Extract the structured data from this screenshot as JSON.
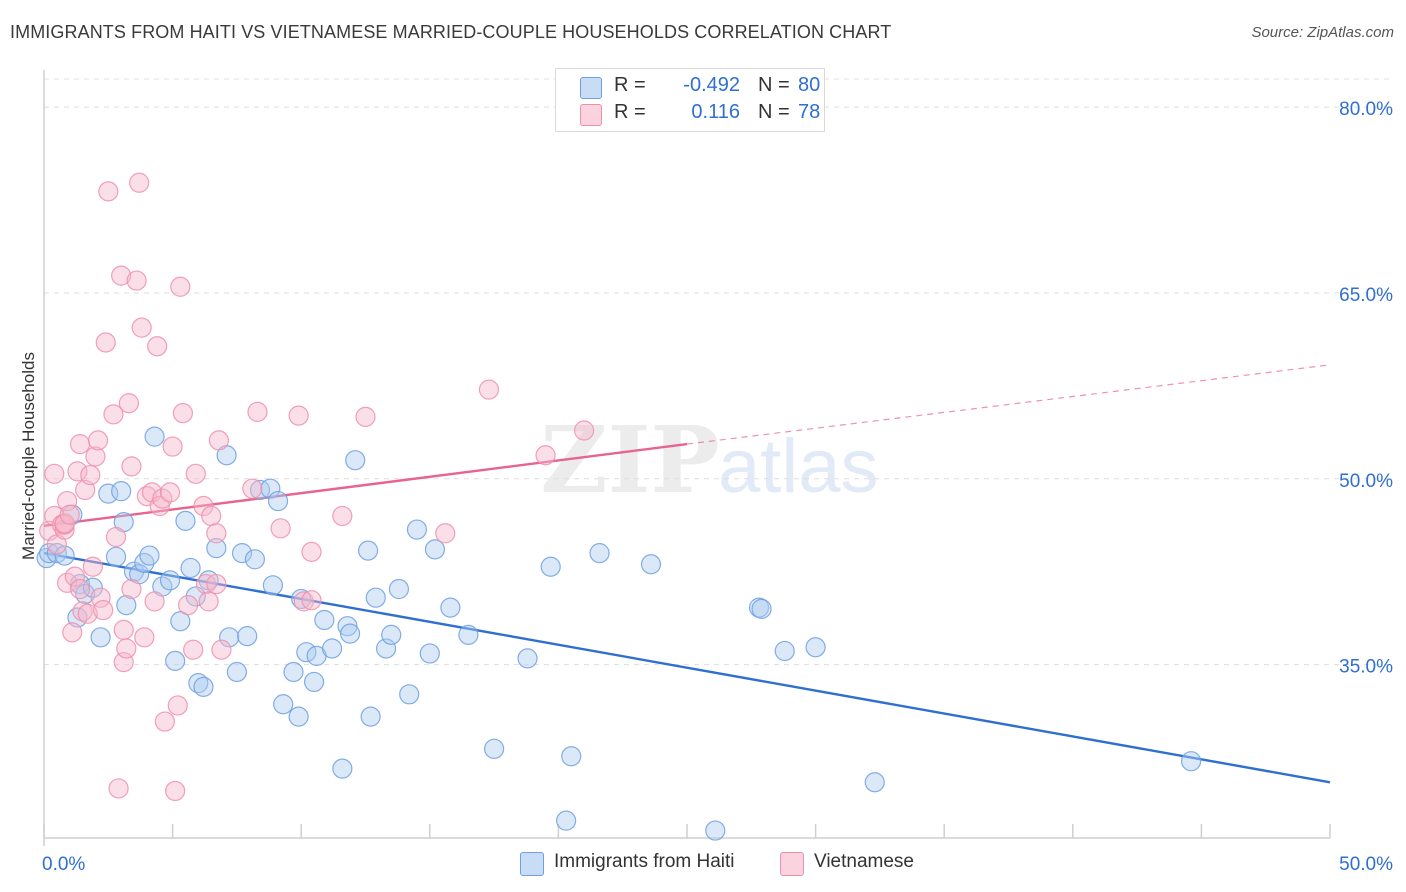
{
  "header": {
    "title": "IMMIGRANTS FROM HAITI VS VIETNAMESE MARRIED-COUPLE HOUSEHOLDS CORRELATION CHART",
    "source": "Source: ZipAtlas.com"
  },
  "watermark": {
    "zip": "ZIP",
    "atlas": "atlas"
  },
  "stats": [
    {
      "r_label": "R =",
      "r_value": "-0.492",
      "n_label": "N =",
      "n_value": "80",
      "color": "#aecbf0"
    },
    {
      "r_label": "R =",
      "r_value": "0.116",
      "n_label": "N =",
      "n_value": "78",
      "color": "#f7b9cc"
    }
  ],
  "legend": [
    {
      "label": "Immigrants from Haiti",
      "color": "#aecbf0"
    },
    {
      "label": "Vietnamese",
      "color": "#f7b9cc"
    }
  ],
  "chart_data": {
    "type": "scatter",
    "title": "IMMIGRANTS FROM HAITI VS VIETNAMESE MARRIED-COUPLE HOUSEHOLDS CORRELATION CHART",
    "xlabel": "",
    "ylabel": "Married-couple Households",
    "xlim": [
      0,
      50
    ],
    "ylim": [
      21,
      83
    ],
    "x_tick_labels": [
      "0.0%",
      "50.0%"
    ],
    "y_ticks": [
      35,
      50,
      65,
      80
    ],
    "y_tick_labels": [
      "35.0%",
      "50.0%",
      "65.0%",
      "80.0%"
    ],
    "grid": true,
    "series": [
      {
        "name": "Immigrants from Haiti",
        "color": "#6fa0e0",
        "fill": "#aecbf0",
        "trend": {
          "x": [
            0,
            50
          ],
          "y": [
            44.0,
            25.5
          ],
          "color": "#2f6fd0"
        },
        "points": [
          [
            0.1,
            43.6
          ],
          [
            0.2,
            44.0
          ],
          [
            0.5,
            44.0
          ],
          [
            0.8,
            43.8
          ],
          [
            1.1,
            47.1
          ],
          [
            1.3,
            38.8
          ],
          [
            1.4,
            41.5
          ],
          [
            1.6,
            40.7
          ],
          [
            1.9,
            41.2
          ],
          [
            2.2,
            37.2
          ],
          [
            2.5,
            48.8
          ],
          [
            2.8,
            43.7
          ],
          [
            3.0,
            49.0
          ],
          [
            3.1,
            46.5
          ],
          [
            3.2,
            39.8
          ],
          [
            3.5,
            42.5
          ],
          [
            3.7,
            42.3
          ],
          [
            3.9,
            43.2
          ],
          [
            4.1,
            43.8
          ],
          [
            4.3,
            53.4
          ],
          [
            4.6,
            41.3
          ],
          [
            4.9,
            41.8
          ],
          [
            5.1,
            35.3
          ],
          [
            5.3,
            38.5
          ],
          [
            5.5,
            46.6
          ],
          [
            5.7,
            42.8
          ],
          [
            5.9,
            40.5
          ],
          [
            6.0,
            33.5
          ],
          [
            6.2,
            33.2
          ],
          [
            6.4,
            41.8
          ],
          [
            6.7,
            44.4
          ],
          [
            7.1,
            51.9
          ],
          [
            7.2,
            37.2
          ],
          [
            7.5,
            34.4
          ],
          [
            7.7,
            44.0
          ],
          [
            7.9,
            37.3
          ],
          [
            8.2,
            43.5
          ],
          [
            8.4,
            49.1
          ],
          [
            8.8,
            49.2
          ],
          [
            8.9,
            41.4
          ],
          [
            9.1,
            48.2
          ],
          [
            9.3,
            31.8
          ],
          [
            9.7,
            34.4
          ],
          [
            9.9,
            30.8
          ],
          [
            10.0,
            40.3
          ],
          [
            10.2,
            36.0
          ],
          [
            10.5,
            33.6
          ],
          [
            10.6,
            35.7
          ],
          [
            10.9,
            38.6
          ],
          [
            11.2,
            36.3
          ],
          [
            11.6,
            26.6
          ],
          [
            11.8,
            38.1
          ],
          [
            11.9,
            37.5
          ],
          [
            12.1,
            51.5
          ],
          [
            12.6,
            44.2
          ],
          [
            12.7,
            30.8
          ],
          [
            12.9,
            40.4
          ],
          [
            13.3,
            36.3
          ],
          [
            13.5,
            37.4
          ],
          [
            13.8,
            41.1
          ],
          [
            14.2,
            32.6
          ],
          [
            14.5,
            45.9
          ],
          [
            15.0,
            35.9
          ],
          [
            15.2,
            44.3
          ],
          [
            15.8,
            39.6
          ],
          [
            16.5,
            37.4
          ],
          [
            17.5,
            28.2
          ],
          [
            18.8,
            35.5
          ],
          [
            19.7,
            42.9
          ],
          [
            20.3,
            22.4
          ],
          [
            20.5,
            27.6
          ],
          [
            21.6,
            44.0
          ],
          [
            23.6,
            43.1
          ],
          [
            26.1,
            21.6
          ],
          [
            27.8,
            39.6
          ],
          [
            27.9,
            39.5
          ],
          [
            28.8,
            36.1
          ],
          [
            30.0,
            36.4
          ],
          [
            32.3,
            25.5
          ],
          [
            44.6,
            27.2
          ]
        ]
      },
      {
        "name": "Vietnamese",
        "color": "#ee8fac",
        "fill": "#f7b9cc",
        "trend": {
          "x": [
            0,
            25
          ],
          "y": [
            46.2,
            52.8
          ],
          "color": "#e8638f",
          "x_dashed_end": 50,
          "y_dashed_end": 59.2
        },
        "points": [
          [
            0.2,
            45.8
          ],
          [
            0.4,
            47.0
          ],
          [
            0.4,
            50.4
          ],
          [
            0.5,
            44.7
          ],
          [
            0.7,
            46.3
          ],
          [
            0.8,
            45.9
          ],
          [
            0.8,
            46.3
          ],
          [
            0.8,
            46.4
          ],
          [
            0.9,
            41.6
          ],
          [
            0.9,
            48.2
          ],
          [
            1.0,
            47.1
          ],
          [
            1.1,
            37.6
          ],
          [
            1.2,
            42.1
          ],
          [
            1.3,
            50.6
          ],
          [
            1.4,
            52.8
          ],
          [
            1.4,
            41.1
          ],
          [
            1.5,
            39.3
          ],
          [
            1.6,
            49.1
          ],
          [
            1.7,
            39.1
          ],
          [
            1.8,
            50.3
          ],
          [
            1.9,
            42.9
          ],
          [
            2.0,
            51.8
          ],
          [
            2.1,
            53.1
          ],
          [
            2.2,
            40.4
          ],
          [
            2.3,
            39.4
          ],
          [
            2.4,
            61.0
          ],
          [
            2.5,
            73.2
          ],
          [
            2.7,
            55.2
          ],
          [
            2.8,
            45.3
          ],
          [
            2.9,
            25.0
          ],
          [
            3.0,
            66.4
          ],
          [
            3.1,
            37.8
          ],
          [
            3.1,
            35.2
          ],
          [
            3.2,
            36.3
          ],
          [
            3.3,
            56.1
          ],
          [
            3.4,
            51.0
          ],
          [
            3.4,
            41.1
          ],
          [
            3.6,
            66.0
          ],
          [
            3.7,
            73.9
          ],
          [
            3.8,
            62.2
          ],
          [
            3.9,
            37.2
          ],
          [
            4.0,
            48.6
          ],
          [
            4.2,
            48.9
          ],
          [
            4.3,
            40.1
          ],
          [
            4.4,
            60.7
          ],
          [
            4.5,
            47.8
          ],
          [
            4.6,
            48.4
          ],
          [
            4.7,
            30.4
          ],
          [
            4.9,
            48.9
          ],
          [
            5.0,
            52.6
          ],
          [
            5.1,
            24.8
          ],
          [
            5.2,
            31.7
          ],
          [
            5.3,
            65.5
          ],
          [
            5.4,
            55.3
          ],
          [
            5.6,
            39.8
          ],
          [
            5.8,
            36.2
          ],
          [
            5.9,
            50.4
          ],
          [
            6.2,
            47.8
          ],
          [
            6.3,
            41.5
          ],
          [
            6.4,
            40.1
          ],
          [
            6.5,
            47.0
          ],
          [
            6.7,
            45.6
          ],
          [
            6.7,
            41.5
          ],
          [
            6.8,
            53.1
          ],
          [
            6.9,
            36.2
          ],
          [
            8.1,
            49.2
          ],
          [
            8.3,
            55.4
          ],
          [
            9.2,
            46.0
          ],
          [
            9.9,
            55.1
          ],
          [
            10.1,
            40.1
          ],
          [
            10.4,
            44.1
          ],
          [
            10.4,
            40.2
          ],
          [
            11.6,
            47.0
          ],
          [
            12.5,
            55.0
          ],
          [
            15.6,
            45.6
          ],
          [
            17.3,
            57.2
          ],
          [
            19.5,
            51.9
          ],
          [
            21.0,
            53.9
          ]
        ]
      }
    ]
  }
}
